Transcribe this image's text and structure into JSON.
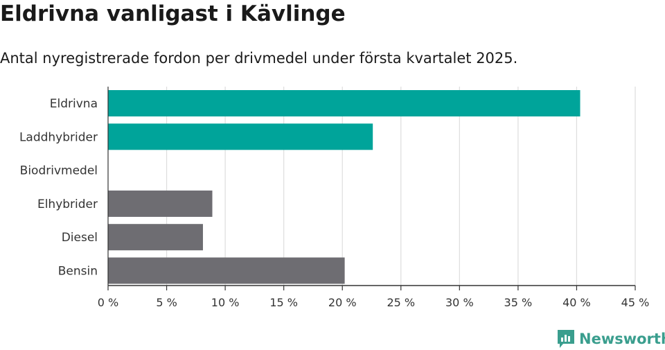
{
  "header": {
    "title": "Eldrivna vanligast i Kävlinge",
    "subtitle": "Antal nyregistrerade fordon per drivmedel under första kvartalet 2025."
  },
  "brand": {
    "name": "Newsworthy",
    "icon": "newsworthy-logo-icon",
    "color": "#3a9e8e"
  },
  "colors": {
    "highlight": "#00a49a",
    "default": "#6e6d72",
    "grid": "#dddddd",
    "axis": "#333333"
  },
  "chart_data": {
    "type": "bar",
    "orientation": "horizontal",
    "categories": [
      "Eldrivna",
      "Laddhybrider",
      "Biodrivmedel",
      "Elhybrider",
      "Diesel",
      "Bensin"
    ],
    "values": [
      40.3,
      22.6,
      0,
      8.9,
      8.1,
      20.2
    ],
    "highlighted": [
      true,
      true,
      true,
      false,
      false,
      false
    ],
    "xlim": [
      0,
      45
    ],
    "xticks": [
      0,
      5,
      10,
      15,
      20,
      25,
      30,
      35,
      40,
      45
    ],
    "xtick_labels": [
      "0 %",
      "5 %",
      "10 %",
      "15 %",
      "20 %",
      "25 %",
      "30 %",
      "35 %",
      "40 %",
      "45 %"
    ],
    "grid": true,
    "legend": "none"
  }
}
